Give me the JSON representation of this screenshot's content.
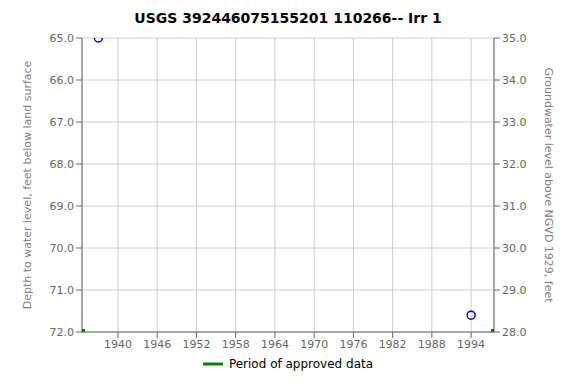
{
  "chart_data": {
    "type": "scatter",
    "title": "USGS 392446075155201 110266-- Irr 1",
    "y_label": "Depth to water level, feet below land surface",
    "y2_label": "Groundwater level above NGVD 1929, feet",
    "xlim": [
      1934.5,
      1997.5
    ],
    "xticks": [
      1940,
      1946,
      1952,
      1958,
      1964,
      1970,
      1976,
      1982,
      1988,
      1994
    ],
    "ylim": [
      72.0,
      65.0
    ],
    "yticks": [
      {
        "value": 65.0,
        "label": "65.0"
      },
      {
        "value": 66.0,
        "label": "66.0"
      },
      {
        "value": 67.0,
        "label": "67.0"
      },
      {
        "value": 68.0,
        "label": "68.0"
      },
      {
        "value": 69.0,
        "label": "69.0"
      },
      {
        "value": 70.0,
        "label": "70.0"
      },
      {
        "value": 71.0,
        "label": "71.0"
      },
      {
        "value": 72.0,
        "label": "72.0"
      }
    ],
    "y2lim": [
      28.0,
      35.0
    ],
    "y2ticks": [
      {
        "value": 28.0,
        "label": "28.0"
      },
      {
        "value": 29.0,
        "label": "29.0"
      },
      {
        "value": 30.0,
        "label": "30.0"
      },
      {
        "value": 31.0,
        "label": "31.0"
      },
      {
        "value": 32.0,
        "label": "32.0"
      },
      {
        "value": 33.0,
        "label": "33.0"
      },
      {
        "value": 34.0,
        "label": "34.0"
      },
      {
        "value": 35.0,
        "label": "35.0"
      }
    ],
    "grid": true,
    "legend": "bottom",
    "series": [
      {
        "color": "#0000cc",
        "marker": "circle",
        "x": [
          1937.0,
          1994.0
        ],
        "values": [
          65.0,
          71.6
        ]
      },
      {
        "name": "Period of approved data",
        "color": "#008000",
        "marker": "square",
        "x": [
          1934.5,
          1997.5
        ],
        "values": [
          72.0,
          72.0
        ]
      }
    ]
  }
}
